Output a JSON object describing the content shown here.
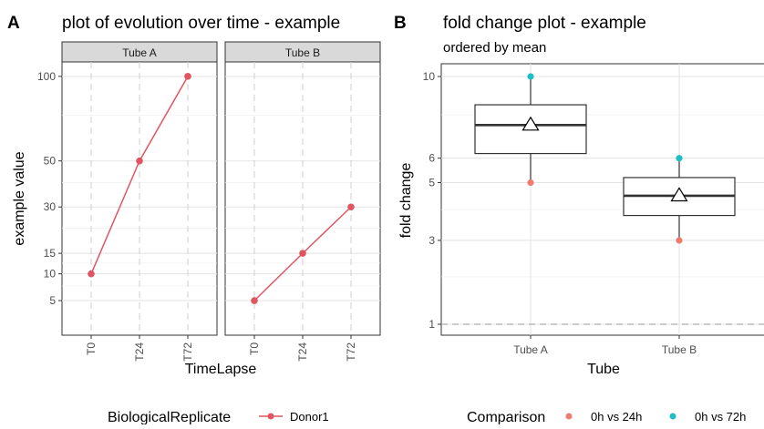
{
  "chart_data": [
    {
      "panel": "A",
      "type": "line",
      "title": "plot of evolution over time - example",
      "xlabel": "TimeLapse",
      "ylabel": "example value",
      "facets": [
        "Tube A",
        "Tube B"
      ],
      "categories": [
        "T0",
        "T24",
        "T72"
      ],
      "yticks": [
        5,
        10,
        15,
        30,
        50,
        100
      ],
      "ylim": [
        0,
        105
      ],
      "scale": "sqrt",
      "grid": true,
      "series": [
        {
          "name": "Donor1",
          "facet": "Tube A",
          "values": [
            10,
            50,
            100
          ],
          "color": "#e05561"
        },
        {
          "name": "Donor1",
          "facet": "Tube B",
          "values": [
            5,
            15,
            30
          ],
          "color": "#e05561"
        }
      ],
      "legend": {
        "title": "BiologicalReplicate",
        "position": "bottom",
        "items": [
          {
            "label": "Donor1",
            "color": "#e05561"
          }
        ]
      }
    },
    {
      "panel": "B",
      "type": "box",
      "title": "fold change plot - example",
      "subtitle": "ordered by mean",
      "xlabel": "Tube",
      "ylabel": "fold change",
      "categories": [
        "Tube A",
        "Tube B"
      ],
      "yticks": [
        1,
        3,
        5,
        6,
        10
      ],
      "ylim": [
        0.8,
        10
      ],
      "scale": "sqrt",
      "reference_line": 1,
      "grid": true,
      "boxes": [
        {
          "category": "Tube A",
          "min": 5,
          "q1": 6.2,
          "median": 7.5,
          "q3": 8.5,
          "max": 10,
          "mean": 7.5
        },
        {
          "category": "Tube B",
          "min": 3,
          "q1": 3.8,
          "median": 4.5,
          "q3": 5.2,
          "max": 6,
          "mean": 4.5
        }
      ],
      "points": [
        {
          "category": "Tube A",
          "comparison": "0h vs 24h",
          "value": 5
        },
        {
          "category": "Tube A",
          "comparison": "0h vs 72h",
          "value": 10
        },
        {
          "category": "Tube B",
          "comparison": "0h vs 24h",
          "value": 3
        },
        {
          "category": "Tube B",
          "comparison": "0h vs 72h",
          "value": 6
        }
      ],
      "legend": {
        "title": "Comparison",
        "position": "bottom",
        "items": [
          {
            "label": "0h vs 24h",
            "color": "#f07b6e"
          },
          {
            "label": "0h vs 72h",
            "color": "#1fbdc6"
          }
        ]
      }
    }
  ]
}
